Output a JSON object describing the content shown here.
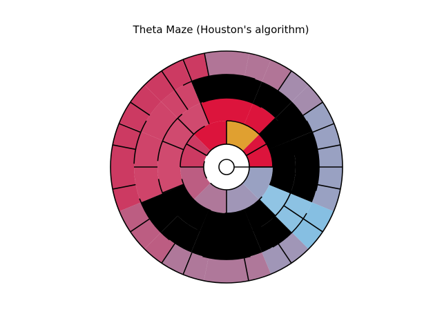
{
  "figure": {
    "title": "Theta Maze (Houston's algorithm)"
  },
  "maze": {
    "rings": 5,
    "cells_per_ring": [
      1,
      8,
      16,
      16,
      32
    ],
    "colors": {
      "start_cell": "#e0a030",
      "near_start": "#dc143c",
      "crimson": "#cc3a62",
      "purple": "#a888a8",
      "blue": "#86bfe2",
      "wall": "#000000"
    }
  }
}
